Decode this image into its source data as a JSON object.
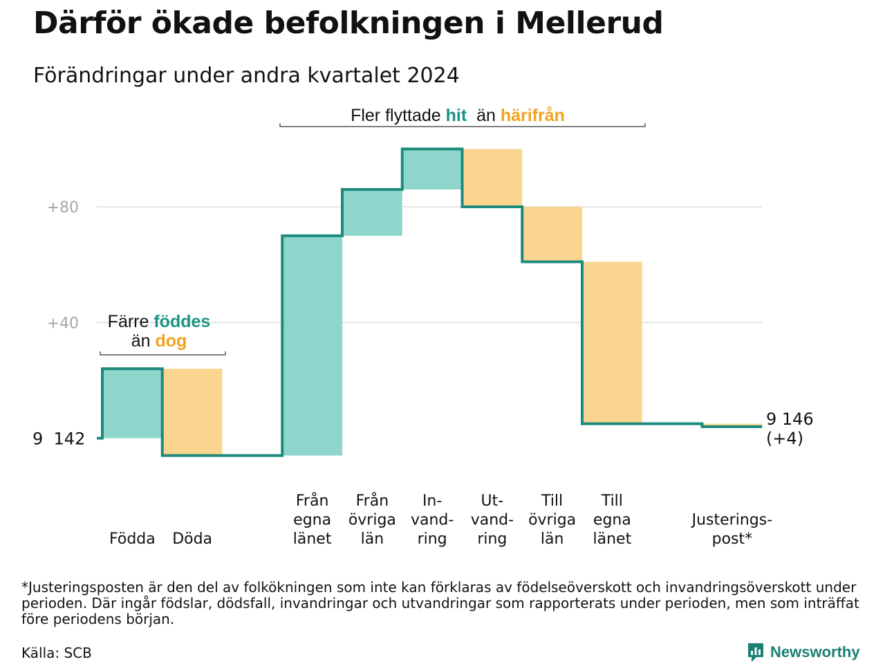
{
  "header": {
    "title": "Därför ökade befolkningen i Mellerud",
    "subtitle": "Förändringar under andra kvartalet 2024"
  },
  "chart_data": {
    "type": "waterfall",
    "start": {
      "label": "9  142",
      "value": 9142
    },
    "end": {
      "label_lines": [
        "9 146",
        "(+4)"
      ],
      "value": 9146,
      "change": 4
    },
    "y_ticks": [
      {
        "label": "+40",
        "value": 40
      },
      {
        "label": "+80",
        "value": 80
      }
    ],
    "ylim": [
      -8,
      102
    ],
    "grid": true,
    "categories": [
      {
        "id": "fodda",
        "label_lines": [
          "Födda"
        ],
        "value": 24,
        "kind": "in"
      },
      {
        "id": "doda",
        "label_lines": [
          "Döda"
        ],
        "value": -30,
        "kind": "out"
      },
      {
        "id": "gap",
        "label_lines": [],
        "value": 0,
        "kind": "none"
      },
      {
        "id": "fran-egna-lanet",
        "label_lines": [
          "Från",
          "egna",
          "länet"
        ],
        "value": 76,
        "kind": "in"
      },
      {
        "id": "fran-ovriga-lan",
        "label_lines": [
          "Från",
          "övriga",
          "län"
        ],
        "value": 16,
        "kind": "in"
      },
      {
        "id": "invandring",
        "label_lines": [
          "In-",
          "vand-",
          "ring"
        ],
        "value": 14,
        "kind": "in"
      },
      {
        "id": "utvandring",
        "label_lines": [
          "Ut-",
          "vand-",
          "ring"
        ],
        "value": -20,
        "kind": "out"
      },
      {
        "id": "till-ovriga-lan",
        "label_lines": [
          "Till",
          "övriga",
          "län"
        ],
        "value": -19,
        "kind": "out"
      },
      {
        "id": "till-egna-lanet",
        "label_lines": [
          "Till",
          "egna",
          "länet"
        ],
        "value": -56,
        "kind": "out"
      },
      {
        "id": "gap2",
        "label_lines": [],
        "value": 0,
        "kind": "none"
      },
      {
        "id": "justeringspost",
        "label_lines": [
          "Justerings-",
          "post*"
        ],
        "value": -1,
        "kind": "out"
      }
    ],
    "annotations": [
      {
        "id": "fodda-doda",
        "lines": [
          [
            {
              "text": "Färre ",
              "role": "plain"
            },
            {
              "text": "föddes",
              "role": "in"
            }
          ],
          [
            {
              "text": "än ",
              "role": "plain"
            },
            {
              "text": "dog",
              "role": "out"
            }
          ]
        ]
      },
      {
        "id": "flyttningar",
        "lines": [
          [
            {
              "text": "Fler flyttade ",
              "role": "plain"
            },
            {
              "text": "hit",
              "role": "in"
            },
            {
              "text": "  än ",
              "role": "plain"
            },
            {
              "text": "härifrån",
              "role": "out"
            }
          ]
        ]
      }
    ],
    "colors": {
      "in_fill": "#8ed5cb",
      "out_fill": "#fad590",
      "in_text": "#1a9484",
      "out_text": "#f2a21c",
      "line": "#1b8a7c",
      "grid": "#e3e3e3",
      "tick_text": "#a6a6a6"
    }
  },
  "footnote": "*Justeringsposten är den del av folkökningen som inte kan förklaras av födelseöverskott och invandringsöverskott under perioden. Där ingår födslar, dödsfall, invandringar och utvandringar som rapporterats under perioden, men som inträffat före periodens början.",
  "source": "Källa: SCB",
  "brand": {
    "name": "Newsworthy",
    "icon": "newsworthy-logo-icon"
  }
}
